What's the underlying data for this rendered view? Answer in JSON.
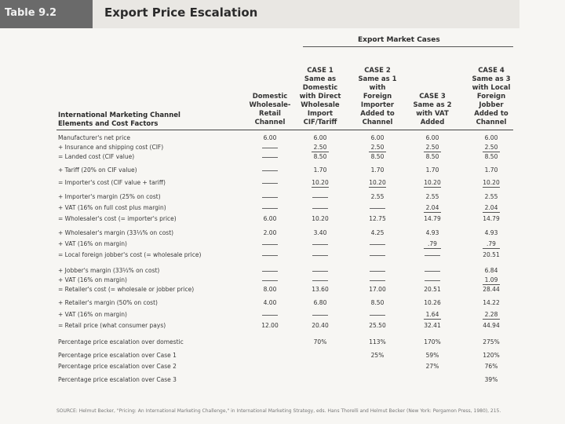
{
  "table_label": "Table 9.2",
  "title": "Export Price Escalation",
  "super_header": "Export Market Cases",
  "row_header": [
    "International Marketing Channel",
    "Elements and Cost Factors"
  ],
  "columns": [
    [
      "Domestic",
      "Wholesale-",
      "Retail",
      "Channel"
    ],
    [
      "CASE 1",
      "Same as",
      "Domestic",
      "with Direct",
      "Wholesale",
      "Import",
      "CIF/Tariff"
    ],
    [
      "CASE 2",
      "Same as 1",
      "with",
      "Foreign",
      "Importer",
      "Added to",
      "Channel"
    ],
    [
      "CASE 3",
      "Same as 2",
      "with VAT",
      "Added"
    ],
    [
      "CASE 4",
      "Same as 3",
      "with Local",
      "Foreign",
      "Jobber",
      "Added to",
      "Channel"
    ]
  ],
  "rows": [
    {
      "label": "Manufacturer's net price",
      "cells": [
        "6.00",
        "6.00",
        "6.00",
        "6.00",
        "6.00"
      ]
    },
    {
      "label": "+ Insurance and shipping cost (CIF)",
      "cells": [
        "—",
        "2.50",
        "2.50",
        "2.50",
        "2.50"
      ]
    },
    {
      "label": "= Landed cost (CIF value)",
      "cells": [
        "—",
        "8.50",
        "8.50",
        "8.50",
        "8.50"
      ]
    },
    {
      "label": "+ Tariff (20% on CIF value)",
      "cells": [
        "—",
        "1.70",
        "1.70",
        "1.70",
        "1.70"
      ]
    },
    {
      "label": "= Importer's cost (CIF value + tariff)",
      "cells": [
        "—",
        "10.20",
        "10.20",
        "10.20",
        "10.20"
      ]
    },
    {
      "label": "+ Importer's margin (25% on cost)",
      "cells": [
        "—",
        "—",
        "2.55",
        "2.55",
        "2.55"
      ]
    },
    {
      "label": "+ VAT (16% on full cost plus margin)",
      "cells": [
        "—",
        "—",
        "—",
        "2.04",
        "2.04"
      ]
    },
    {
      "label": "= Wholesaler's cost (= importer's price)",
      "cells": [
        "6.00",
        "10.20",
        "12.75",
        "14.79",
        "14.79"
      ]
    },
    {
      "label": "+ Wholesaler's margin (33⅓% on cost)",
      "cells": [
        "2.00",
        "3.40",
        "4.25",
        "4.93",
        "4.93"
      ]
    },
    {
      "label": "+ VAT (16% on margin)",
      "cells": [
        "—",
        "—",
        "—",
        ".79",
        ".79"
      ]
    },
    {
      "label": "= Local foreign jobber's cost (= wholesale price)",
      "cells": [
        "—",
        "—",
        "—",
        "—",
        "20.51"
      ]
    },
    {
      "label": "+ Jobber's margin (33⅓% on cost)",
      "cells": [
        "—",
        "—",
        "—",
        "—",
        "6.84"
      ]
    },
    {
      "label": "+ VAT (16% on margin)",
      "cells": [
        "—",
        "—",
        "—",
        "—",
        "1.09"
      ]
    },
    {
      "label": "= Retailer's cost (= wholesale or jobber price)",
      "cells": [
        "8.00",
        "13.60",
        "17.00",
        "20.51",
        "28.44"
      ]
    },
    {
      "label": "+ Retailer's margin (50% on cost)",
      "cells": [
        "4.00",
        "6.80",
        "8.50",
        "10.26",
        "14.22"
      ]
    },
    {
      "label": "+ VAT (16% on margin)",
      "cells": [
        "—",
        "—",
        "—",
        "1.64",
        "2.28"
      ]
    },
    {
      "label": "= Retail price (what consumer pays)",
      "cells": [
        "12.00",
        "20.40",
        "25.50",
        "32.41",
        "44.94"
      ]
    },
    {
      "label": "Percentage price escalation over domestic",
      "cells": [
        "",
        "70%",
        "113%",
        "170%",
        "275%"
      ]
    },
    {
      "label": "Percentage price escalation over Case 1",
      "cells": [
        "",
        "",
        "25%",
        "59%",
        "120%"
      ]
    },
    {
      "label": "Percentage price escalation over Case 2",
      "cells": [
        "",
        "",
        "",
        "27%",
        "76%"
      ]
    },
    {
      "label": "Percentage price escalation over Case 3",
      "cells": [
        "",
        "",
        "",
        "",
        "39%"
      ]
    }
  ],
  "source": "SOURCE: Helmut Becker, \"Pricing: An International Marketing Challenge,\" in International Marketing Strategy, eds. Hans Thorelli and Helmut Becker (New York: Pergamon Press, 1980), 215."
}
